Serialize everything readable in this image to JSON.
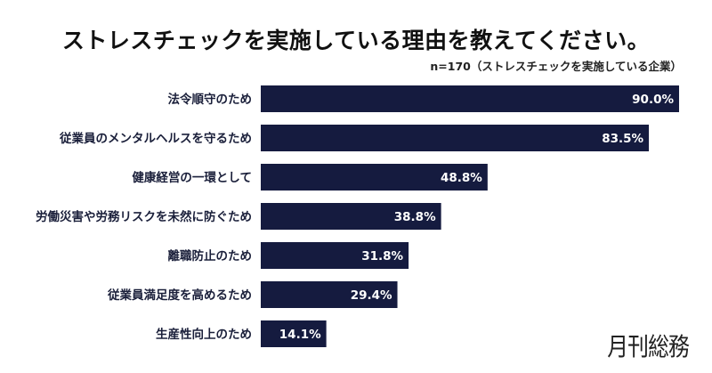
{
  "chart_data": {
    "type": "bar",
    "orientation": "horizontal",
    "title": "ストレスチェックを実施している理由を教えてください。",
    "subtitle": "n=170（ストレスチェックを実施している企業）",
    "categories": [
      "法令順守のため",
      "従業員のメンタルヘルスを守るため",
      "健康経営の一環として",
      "労働災害や労務リスクを未然に防ぐため",
      "離職防止のため",
      "従業員満足度を高めるため",
      "生産性向上のため"
    ],
    "values": [
      90.0,
      83.5,
      48.8,
      38.8,
      31.8,
      29.4,
      14.1
    ],
    "data_labels": [
      "90.0%",
      "83.5%",
      "48.8%",
      "38.8%",
      "31.8%",
      "29.4%",
      "14.1%"
    ],
    "unit": "%",
    "xlim": [
      0,
      90
    ],
    "grid": false,
    "bar_color": "#151b3f",
    "label_color": "#ffffff"
  },
  "logo": "月刊総務"
}
